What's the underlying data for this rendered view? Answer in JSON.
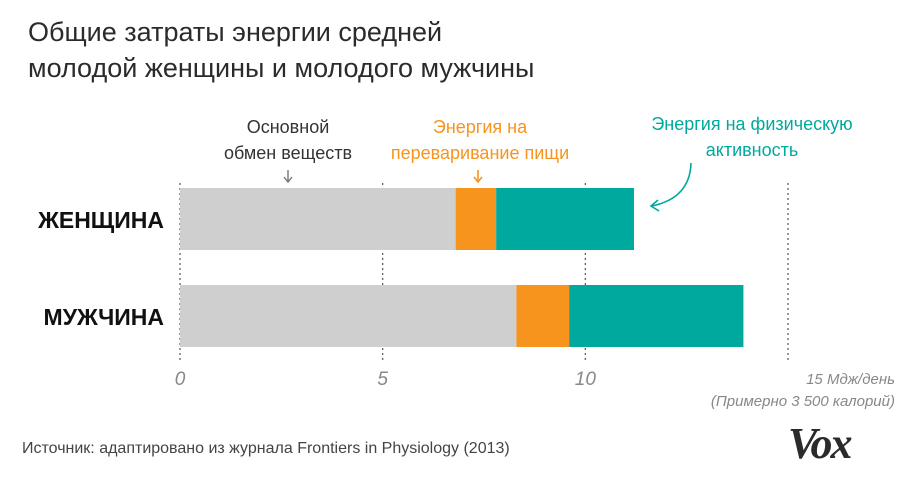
{
  "chart_data": {
    "type": "bar",
    "stacked": true,
    "orientation": "horizontal",
    "title": "Общие затраты энергии средней\nмолодой женщины и молодого мужчины",
    "categories": [
      "ЖЕНЩИНА",
      "МУЖЧИНА"
    ],
    "series": [
      {
        "name": "Основной\nобмен веществ",
        "color": "#cfcfcf",
        "values": [
          6.8,
          8.3
        ]
      },
      {
        "name": "Энергия на\nпереваривание пищи",
        "color": "#f7941d",
        "values": [
          1.0,
          1.3
        ]
      },
      {
        "name": "Энергия на физическую\nактивность",
        "color": "#00a99d",
        "values": [
          3.4,
          4.3
        ]
      }
    ],
    "xlim": [
      0,
      15
    ],
    "xticks": [
      "0",
      "5",
      "10"
    ],
    "xlabel": "15 Мдж/день\n(Примерно 3 500 калорий)"
  },
  "source": "Источник: адаптировано из журнала Frontiers in Physiology (2013)",
  "logo": "Vox",
  "colors": {
    "text": "#2b2b2b",
    "grid": "#555555",
    "tick": "#888888"
  }
}
